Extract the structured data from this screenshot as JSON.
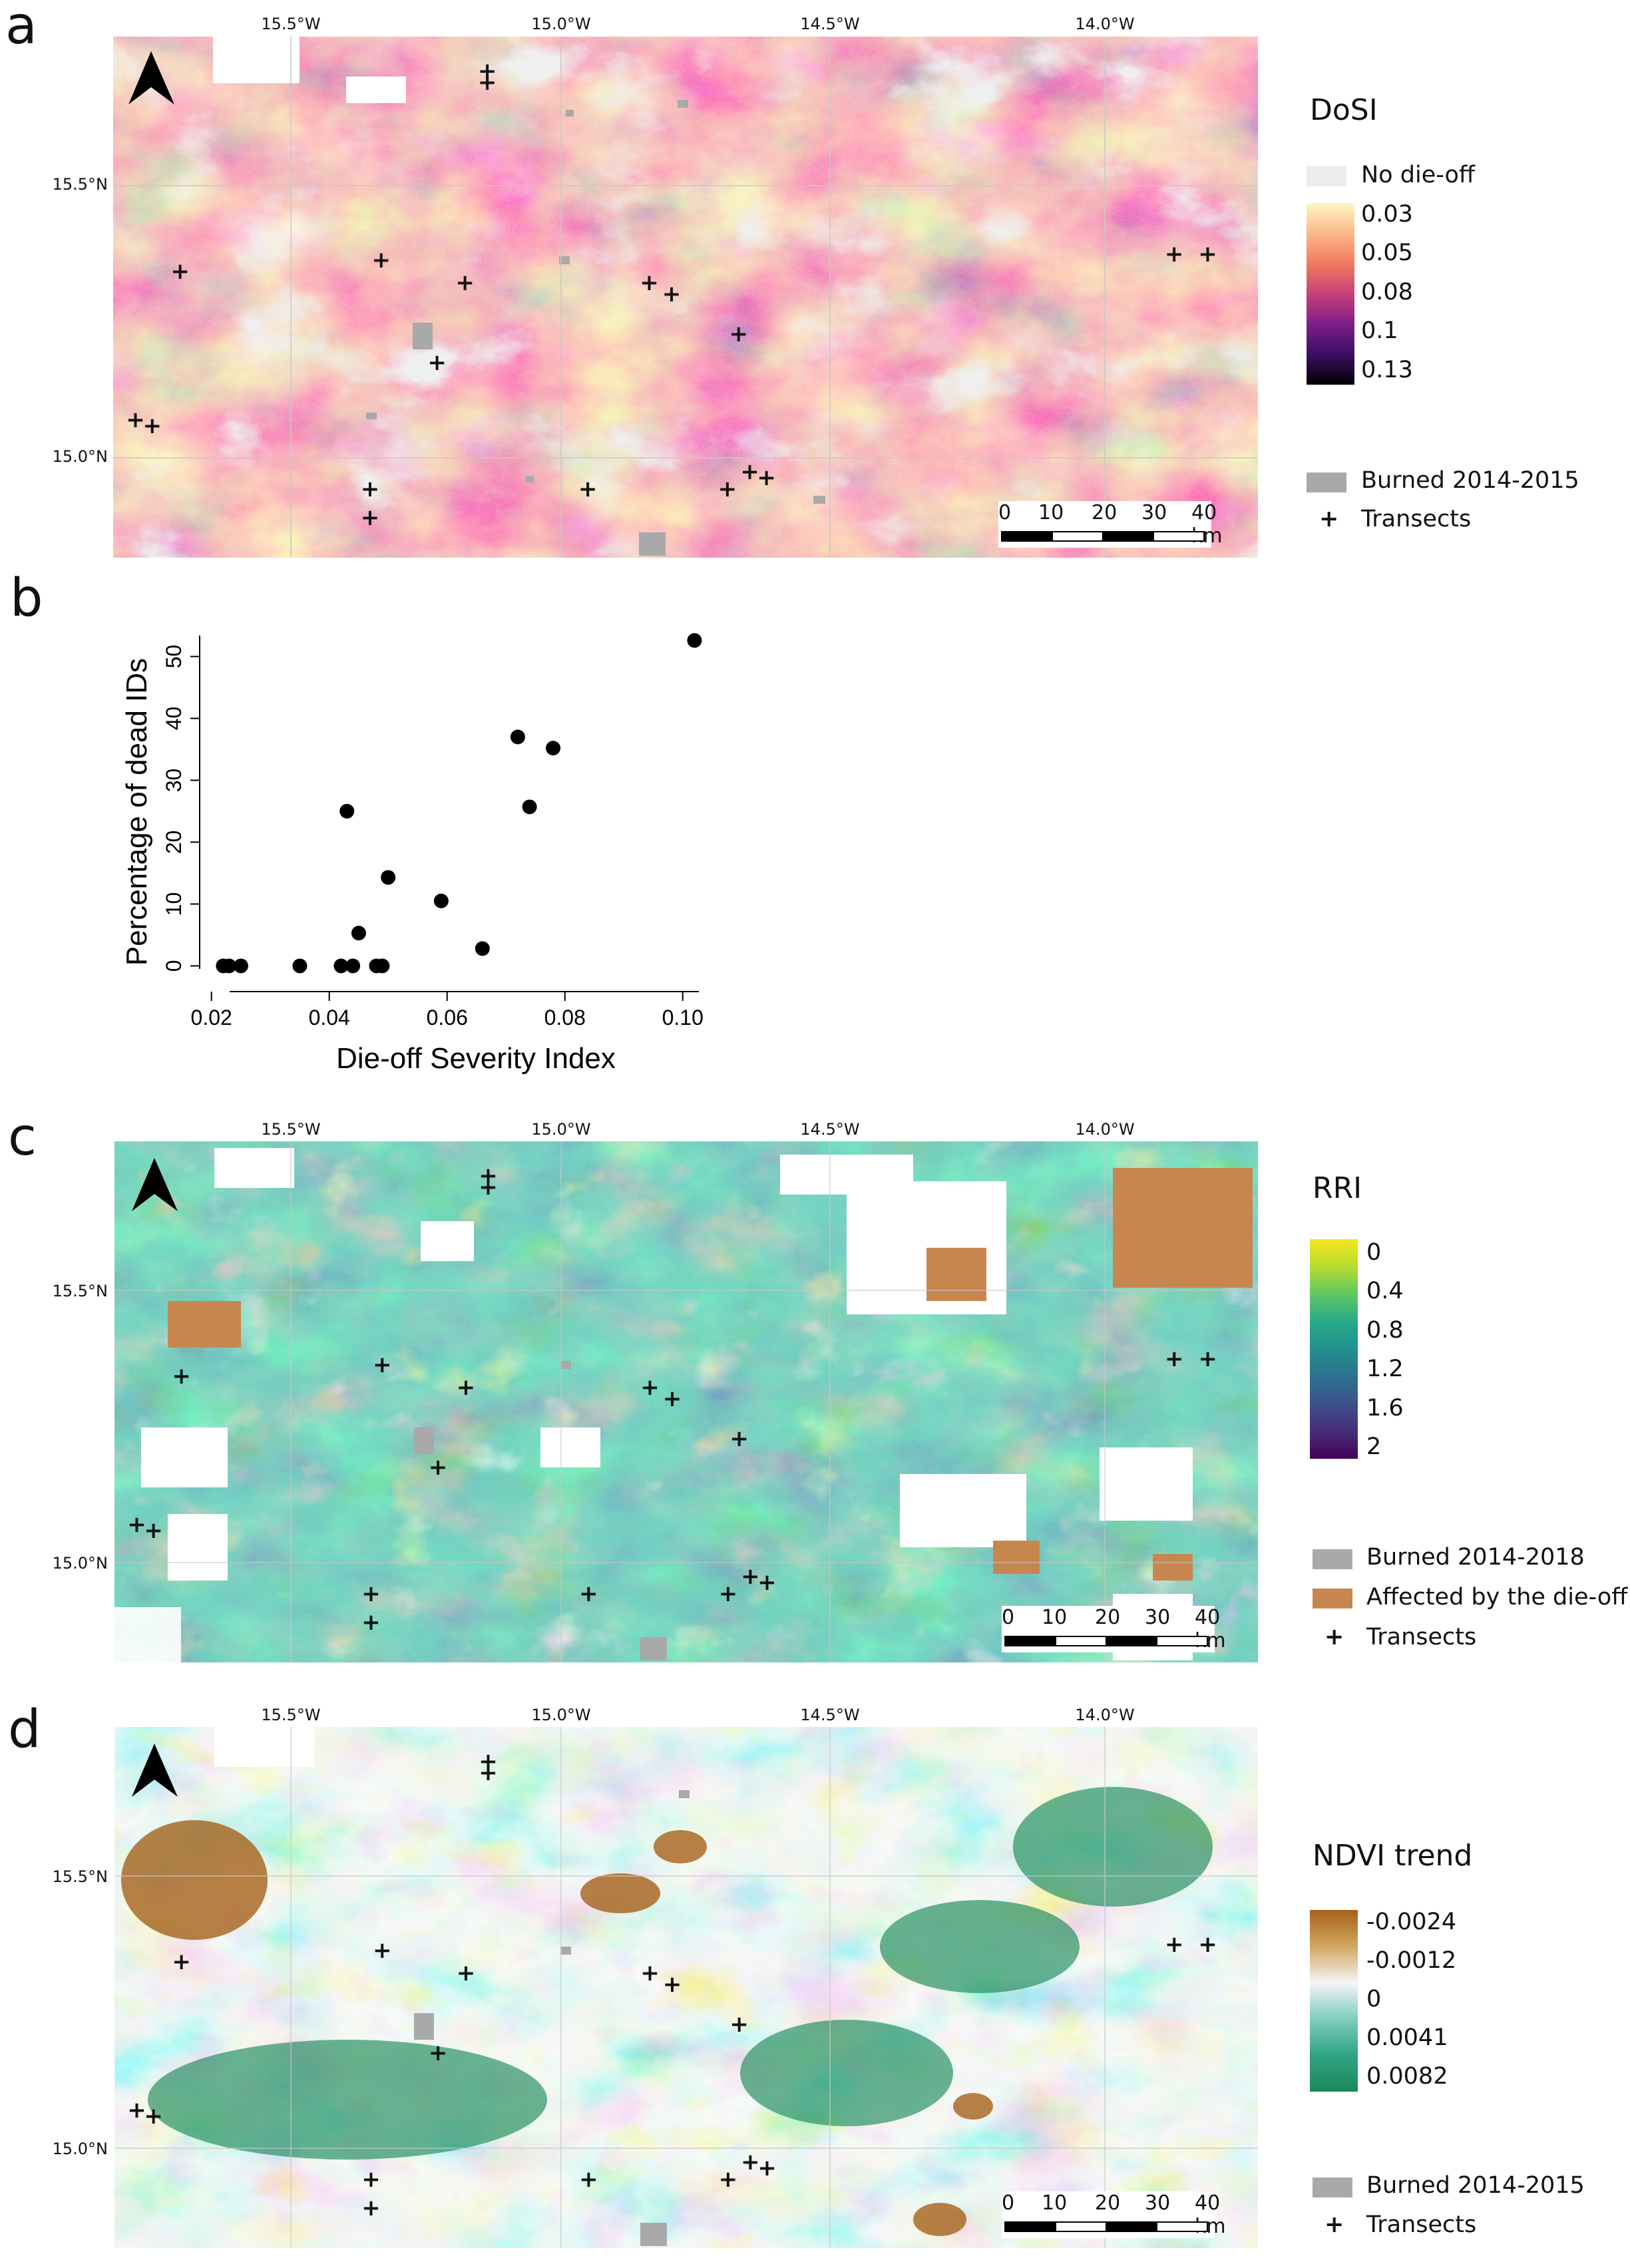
{
  "panels": {
    "a": {
      "letter": "a",
      "lon_ticks": [
        "15.5°W",
        "15.0°W",
        "14.5°W",
        "14.0°W"
      ],
      "lat_ticks": [
        "15.5°N",
        "15.0°N"
      ],
      "legend": {
        "title": "DoSI",
        "no_dieoff": "No die-off",
        "scale": [
          "0.03",
          "0.05",
          "0.08",
          "0.1",
          "0.13"
        ],
        "burned": "Burned 2014-2015",
        "transects": "Transects",
        "gradient": [
          "#fdf6c4",
          "#fbb98a",
          "#f27a5c",
          "#c8407a",
          "#7d1f8a",
          "#3a0f62",
          "#000004"
        ]
      },
      "scalebar": {
        "labels": [
          "0",
          "10",
          "20",
          "30",
          "40 km"
        ]
      }
    },
    "b": {
      "letter": "b",
      "ylabel": "Percentage of dead IDs",
      "xlabel": "Die-off Severity Index",
      "xticks": [
        "0.02",
        "0.04",
        "0.06",
        "0.08",
        "0.10"
      ],
      "yticks": [
        "0",
        "10",
        "20",
        "30",
        "40",
        "50"
      ]
    },
    "c": {
      "letter": "c",
      "lon_ticks": [
        "15.5°W",
        "15.0°W",
        "14.5°W",
        "14.0°W"
      ],
      "lat_ticks": [
        "15.5°N",
        "15.0°N"
      ],
      "legend": {
        "title": "RRI",
        "scale": [
          "0",
          "0.4",
          "0.8",
          "1.2",
          "1.6",
          "2"
        ],
        "burned": "Burned 2014-2018",
        "affected": "Affected by the die-off",
        "transects": "Transects",
        "gradient": [
          "#f5e61e",
          "#b7dc2f",
          "#5ec962",
          "#27a98a",
          "#21918c",
          "#2c728e",
          "#3b528b",
          "#472d7b",
          "#440154"
        ]
      },
      "scalebar": {
        "labels": [
          "0",
          "10",
          "20",
          "30",
          "40 km"
        ]
      }
    },
    "d": {
      "letter": "d",
      "lon_ticks": [
        "15.5°W",
        "15.0°W",
        "14.5°W",
        "14.0°W"
      ],
      "lat_ticks": [
        "15.5°N",
        "15.0°N"
      ],
      "legend": {
        "title": "NDVI trend",
        "scale": [
          "-0.0024",
          "-0.0012",
          "0",
          "0.0041",
          "0.0082"
        ],
        "burned": "Burned 2014-2015",
        "transects": "Transects",
        "gradient": [
          "#a6611a",
          "#d2a660",
          "#f5f5f5",
          "#80cdc1",
          "#2fa383",
          "#1b8a5a"
        ]
      },
      "scalebar": {
        "labels": [
          "0",
          "10",
          "20",
          "30",
          "40 km"
        ]
      }
    }
  },
  "chart_data": {
    "type": "scatter",
    "title": "",
    "xlabel": "Die-off Severity Index",
    "ylabel": "Percentage of dead IDs",
    "xlim": [
      0.018,
      0.105
    ],
    "ylim": [
      -2,
      55
    ],
    "points": [
      {
        "x": 0.022,
        "y": 0
      },
      {
        "x": 0.023,
        "y": 0
      },
      {
        "x": 0.025,
        "y": 0
      },
      {
        "x": 0.035,
        "y": 0
      },
      {
        "x": 0.042,
        "y": 0
      },
      {
        "x": 0.043,
        "y": 25
      },
      {
        "x": 0.044,
        "y": 0
      },
      {
        "x": 0.045,
        "y": 5.3
      },
      {
        "x": 0.048,
        "y": 0
      },
      {
        "x": 0.049,
        "y": 0
      },
      {
        "x": 0.05,
        "y": 14.3
      },
      {
        "x": 0.059,
        "y": 10.5
      },
      {
        "x": 0.066,
        "y": 2.8
      },
      {
        "x": 0.072,
        "y": 37
      },
      {
        "x": 0.074,
        "y": 25.7
      },
      {
        "x": 0.078,
        "y": 35.2
      },
      {
        "x": 0.102,
        "y": 52.6
      }
    ]
  },
  "transects": [
    {
      "lon": -15.13,
      "lat": 15.68
    },
    {
      "lon": -15.13,
      "lat": 15.66
    },
    {
      "lon": -15.68,
      "lat": 15.33
    },
    {
      "lon": -15.32,
      "lat": 15.35
    },
    {
      "lon": -15.17,
      "lat": 15.31
    },
    {
      "lon": -14.84,
      "lat": 15.31
    },
    {
      "lon": -14.8,
      "lat": 15.29
    },
    {
      "lon": -14.68,
      "lat": 15.22
    },
    {
      "lon": -15.22,
      "lat": 15.17
    },
    {
      "lon": -15.76,
      "lat": 15.07
    },
    {
      "lon": -15.73,
      "lat": 15.06
    },
    {
      "lon": -15.34,
      "lat": 14.95
    },
    {
      "lon": -15.34,
      "lat": 14.9
    },
    {
      "lon": -14.95,
      "lat": 14.95
    },
    {
      "lon": -14.7,
      "lat": 14.95
    },
    {
      "lon": -14.66,
      "lat": 14.98
    },
    {
      "lon": -14.63,
      "lat": 14.97
    },
    {
      "lon": -13.9,
      "lat": 15.36
    },
    {
      "lon": -13.84,
      "lat": 15.36
    }
  ]
}
